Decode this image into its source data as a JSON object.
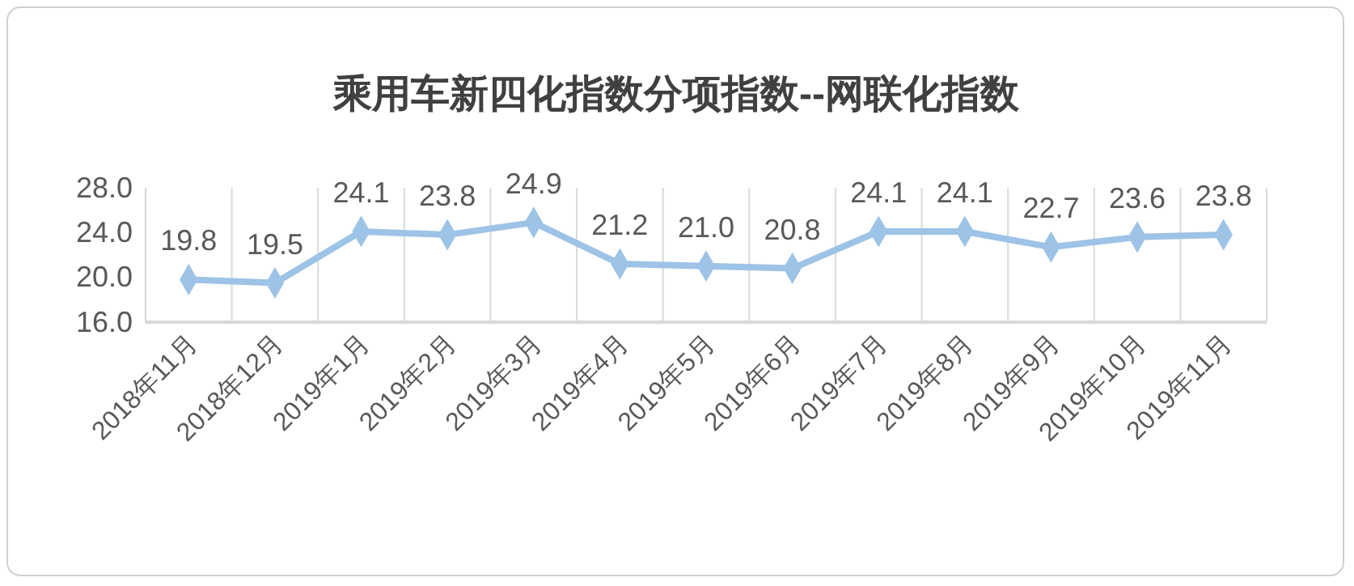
{
  "chart_data": {
    "type": "line",
    "title": "乘用车新四化指数分项指数--网联化指数",
    "categories": [
      "2018年11月",
      "2018年12月",
      "2019年1月",
      "2019年2月",
      "2019年3月",
      "2019年4月",
      "2019年5月",
      "2019年6月",
      "2019年7月",
      "2019年8月",
      "2019年9月",
      "2019年10月",
      "2019年11月"
    ],
    "series": [
      {
        "color": "#9dc3e6",
        "values": [
          19.8,
          19.5,
          24.1,
          23.8,
          24.9,
          21.2,
          21.0,
          20.8,
          24.1,
          24.1,
          22.7,
          23.6,
          23.8
        ],
        "value_labels": [
          "19.8",
          "19.5",
          "24.1",
          "23.8",
          "24.9",
          "21.2",
          "21.0",
          "20.8",
          "24.1",
          "24.1",
          "22.7",
          "23.6",
          "23.8"
        ]
      }
    ],
    "ylim": [
      16,
      28
    ],
    "yticks": [
      {
        "value": 16,
        "label": "16.0"
      },
      {
        "value": 20,
        "label": "20.0"
      },
      {
        "value": 24,
        "label": "24.0"
      },
      {
        "value": 28,
        "label": "28.0"
      }
    ],
    "grid": "x",
    "marker": "diamond"
  }
}
